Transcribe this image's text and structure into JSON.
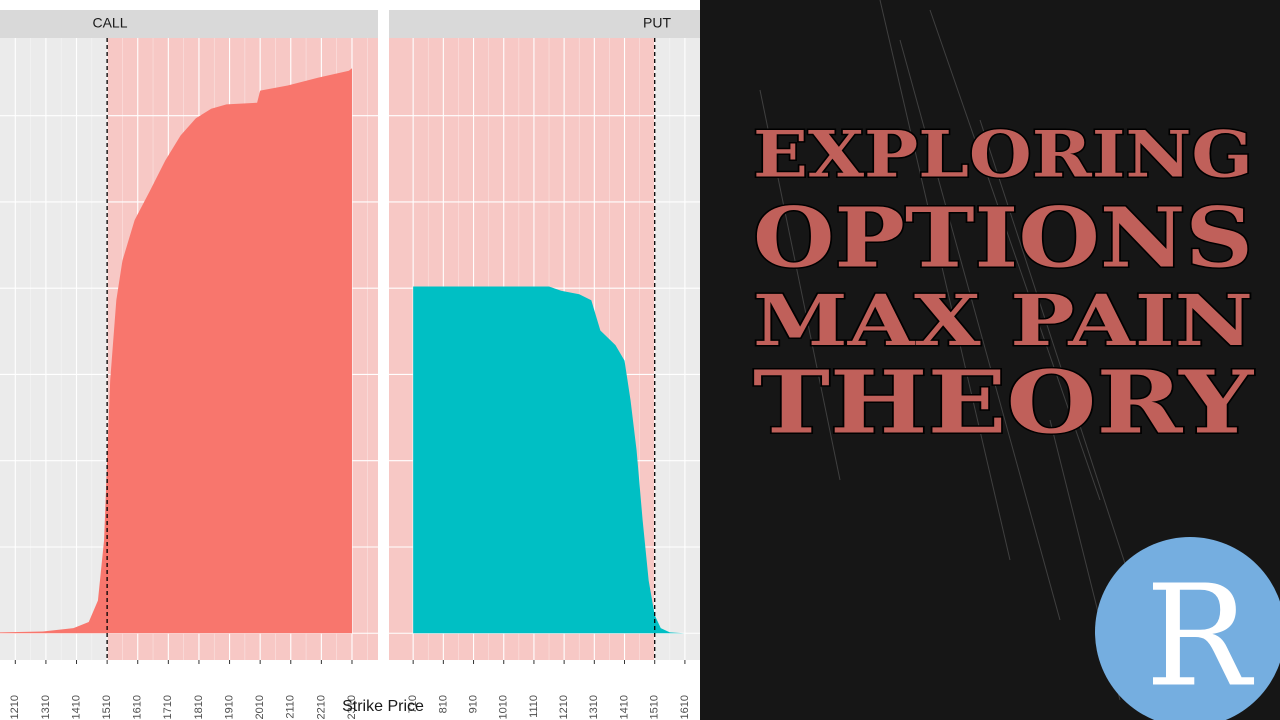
{
  "chart_data": [
    {
      "type": "area",
      "strip": "CALL",
      "color": "#f8766d",
      "shade": "right",
      "max_pain": 1510,
      "x": [
        1160,
        1300,
        1400,
        1450,
        1480,
        1500,
        1520,
        1540,
        1560,
        1600,
        1650,
        1700,
        1750,
        1800,
        1850,
        1900,
        2000,
        2010,
        2100,
        2200,
        2300,
        2310
      ],
      "values": [
        0.01,
        0.02,
        0.06,
        0.13,
        0.38,
        1.08,
        2.93,
        3.86,
        4.32,
        4.79,
        5.13,
        5.48,
        5.77,
        5.97,
        6.08,
        6.13,
        6.15,
        6.29,
        6.35,
        6.44,
        6.52,
        6.55
      ],
      "xlim": [
        1160,
        2395
      ],
      "ylim": [
        -0.31,
        6.9
      ],
      "xticks": [
        1210,
        1310,
        1410,
        1510,
        1610,
        1710,
        1810,
        1910,
        2010,
        2110,
        2210,
        2310
      ],
      "ygrid": [
        0,
        1,
        2,
        3,
        4,
        5,
        6
      ]
    },
    {
      "type": "area",
      "strip": "PUT",
      "color": "#00bfc4",
      "shade": "left",
      "max_pain": 1510,
      "x": [
        710,
        1160,
        1200,
        1260,
        1300,
        1330,
        1380,
        1410,
        1430,
        1450,
        1470,
        1490,
        1510,
        1530,
        1560,
        1610
      ],
      "values": [
        4.02,
        4.02,
        3.97,
        3.93,
        3.86,
        3.51,
        3.34,
        3.16,
        2.7,
        2.12,
        1.31,
        0.61,
        0.21,
        0.06,
        0.01,
        0
      ],
      "xlim": [
        630,
        1660
      ],
      "ylim": [
        -0.31,
        6.9
      ],
      "xticks": [
        710,
        810,
        910,
        1010,
        1110,
        1210,
        1310,
        1410,
        1510,
        1610
      ],
      "ygrid": [
        0,
        1,
        2,
        3,
        4,
        5,
        6
      ]
    }
  ],
  "x_label": "Strike Price",
  "headline": [
    "EXPLORING",
    "OPTIONS",
    "MAX PAIN",
    "THEORY"
  ],
  "logo": "R"
}
